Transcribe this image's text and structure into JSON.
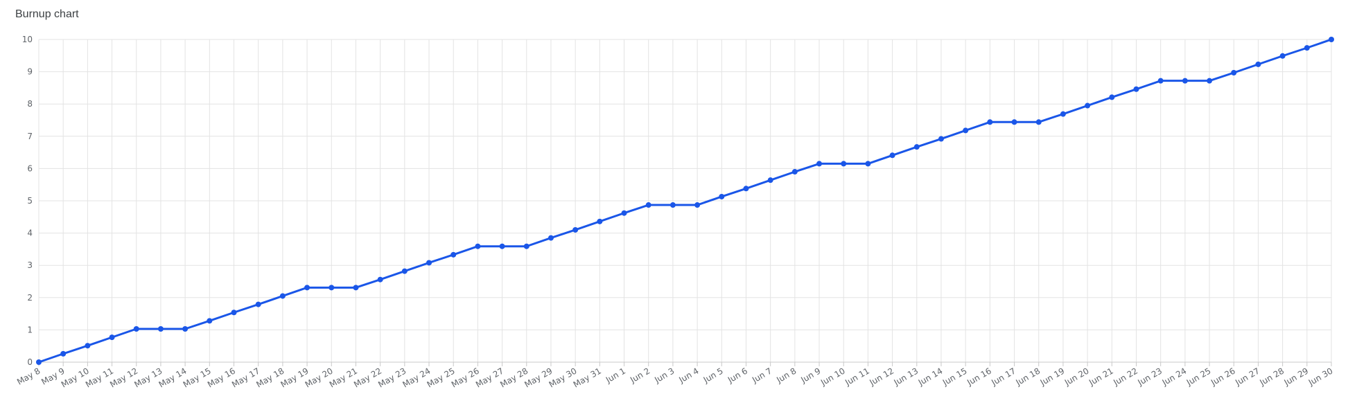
{
  "chart_data": {
    "type": "line",
    "title": "Burnup chart",
    "xlabel": "",
    "ylabel": "",
    "ylim": [
      0,
      10
    ],
    "yticks": [
      0,
      1,
      2,
      3,
      4,
      5,
      6,
      7,
      8,
      9,
      10
    ],
    "grid": true,
    "legend": "none",
    "line_color": "#1a56e8",
    "categories": [
      "May 8",
      "May 9",
      "May 10",
      "May 11",
      "May 12",
      "May 13",
      "May 14",
      "May 15",
      "May 16",
      "May 17",
      "May 18",
      "May 19",
      "May 20",
      "May 21",
      "May 22",
      "May 23",
      "May 24",
      "May 25",
      "May 26",
      "May 27",
      "May 28",
      "May 29",
      "May 30",
      "May 31",
      "Jun 1",
      "Jun 2",
      "Jun 3",
      "Jun 4",
      "Jun 5",
      "Jun 6",
      "Jun 7",
      "Jun 8",
      "Jun 9",
      "Jun 10",
      "Jun 11",
      "Jun 12",
      "Jun 13",
      "Jun 14",
      "Jun 15",
      "Jun 16",
      "Jun 17",
      "Jun 18",
      "Jun 19",
      "Jun 20",
      "Jun 21",
      "Jun 22",
      "Jun 23",
      "Jun 24",
      "Jun 25",
      "Jun 26",
      "Jun 27",
      "Jun 28",
      "Jun 29",
      "Jun 30"
    ],
    "series": [
      {
        "values": [
          0,
          0.26,
          0.51,
          0.77,
          1.03,
          1.03,
          1.03,
          1.28,
          1.54,
          1.79,
          2.05,
          2.31,
          2.31,
          2.31,
          2.56,
          2.82,
          3.08,
          3.33,
          3.59,
          3.59,
          3.59,
          3.85,
          4.1,
          4.36,
          4.62,
          4.87,
          4.87,
          4.87,
          5.13,
          5.38,
          5.64,
          5.9,
          6.15,
          6.15,
          6.15,
          6.41,
          6.67,
          6.92,
          7.18,
          7.44,
          7.44,
          7.44,
          7.69,
          7.95,
          8.21,
          8.46,
          8.72,
          8.72,
          8.72,
          8.97,
          9.23,
          9.49,
          9.74,
          10
        ]
      }
    ]
  }
}
